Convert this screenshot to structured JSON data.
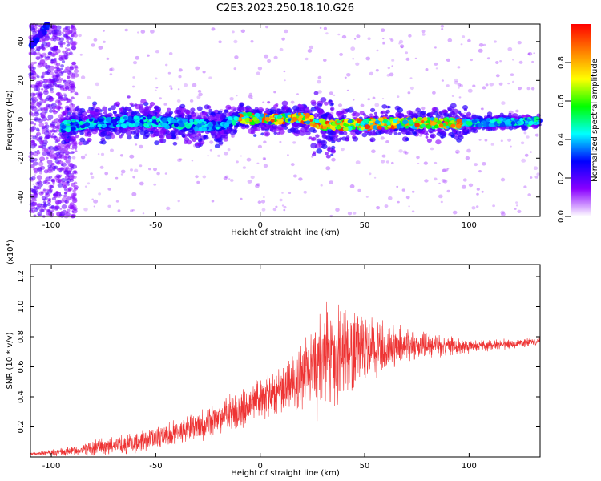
{
  "figure": {
    "title": "C2E3.2023.250.18.10.G26"
  },
  "chart_data": [
    {
      "type": "heatmap",
      "xlabel": "Height of straight line (km)",
      "ylabel": "Frequency (Hz)",
      "xlim": [
        -110,
        134
      ],
      "ylim": [
        -50,
        49
      ],
      "xticks": [
        -100,
        -50,
        0,
        50,
        100
      ],
      "yticks": [
        -40,
        -20,
        0,
        20,
        40
      ],
      "colorbar": {
        "label": "Normalized spectral amplitude",
        "range": [
          0,
          1
        ],
        "ticks": [
          "0.0",
          "0.2",
          "0.4",
          "0.6",
          "0.8"
        ],
        "colors": [
          "#ffffff",
          "#8a00ff",
          "#0000ff",
          "#00ffff",
          "#00ff00",
          "#ffff00",
          "#ff8000",
          "#ff0000"
        ]
      },
      "ridge": [
        {
          "x": -95,
          "y": -4
        },
        {
          "x": -80,
          "y": -2
        },
        {
          "x": -60,
          "y": -1
        },
        {
          "x": -40,
          "y": -2
        },
        {
          "x": -20,
          "y": -4
        },
        {
          "x": -10,
          "y": 1
        },
        {
          "x": 0,
          "y": 0
        },
        {
          "x": 10,
          "y": 0
        },
        {
          "x": 20,
          "y": 1
        },
        {
          "x": 30,
          "y": -3
        },
        {
          "x": 45,
          "y": -3
        },
        {
          "x": 60,
          "y": -2
        },
        {
          "x": 80,
          "y": -2
        },
        {
          "x": 96,
          "y": -2
        },
        {
          "x": 134,
          "y": -1
        }
      ]
    },
    {
      "type": "line",
      "xlabel": "Height of straight line (km)",
      "ylabel": "SNR (10 * v/v)",
      "scale_label": "(x10",
      "scale_exp": "4",
      "scale_close": ")",
      "xlim": [
        -110,
        134
      ],
      "ylim": [
        0,
        1.28
      ],
      "xticks": [
        -100,
        -50,
        0,
        50,
        100
      ],
      "yticks": [
        "0.2",
        "0.4",
        "0.6",
        "0.8",
        "1.0",
        "1.2"
      ],
      "color": "#ee3333",
      "envelope": [
        {
          "x": -110,
          "mean": 0.02,
          "amp": 0.01
        },
        {
          "x": -95,
          "mean": 0.03,
          "amp": 0.03
        },
        {
          "x": -80,
          "mean": 0.06,
          "amp": 0.06
        },
        {
          "x": -60,
          "mean": 0.1,
          "amp": 0.08
        },
        {
          "x": -40,
          "mean": 0.16,
          "amp": 0.1
        },
        {
          "x": -20,
          "mean": 0.26,
          "amp": 0.14
        },
        {
          "x": 0,
          "mean": 0.38,
          "amp": 0.17
        },
        {
          "x": 15,
          "mean": 0.48,
          "amp": 0.2
        },
        {
          "x": 25,
          "mean": 0.58,
          "amp": 0.35
        },
        {
          "x": 32,
          "mean": 0.66,
          "amp": 0.45
        },
        {
          "x": 40,
          "mean": 0.7,
          "amp": 0.38
        },
        {
          "x": 50,
          "mean": 0.72,
          "amp": 0.25
        },
        {
          "x": 65,
          "mean": 0.74,
          "amp": 0.15
        },
        {
          "x": 80,
          "mean": 0.75,
          "amp": 0.1
        },
        {
          "x": 100,
          "mean": 0.73,
          "amp": 0.05
        },
        {
          "x": 134,
          "mean": 0.77,
          "amp": 0.03
        }
      ]
    }
  ]
}
